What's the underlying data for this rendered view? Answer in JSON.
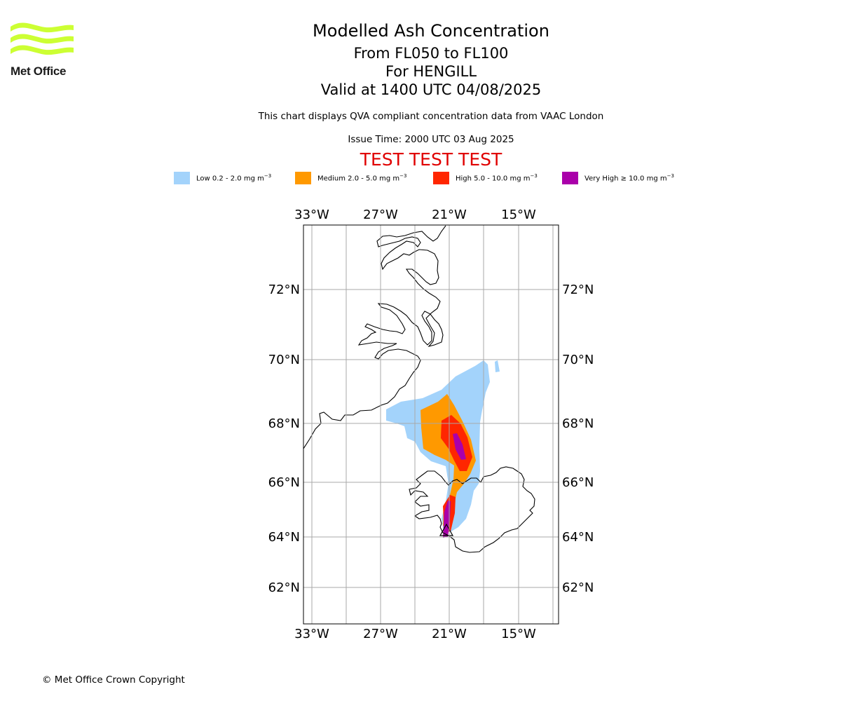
{
  "logo": {
    "text": "Met Office",
    "wave_color": "#ccff33"
  },
  "header": {
    "title": "Modelled Ash Concentration",
    "levels": "From FL050 to FL100",
    "location": "For HENGILL",
    "valid": "Valid at 1400 UTC 04/08/2025",
    "compliance_note": "This chart displays QVA compliant concentration data from VAAC London",
    "issue_time": "Issue Time: 2000 UTC 03 Aug 2025",
    "test_banner": "TEST TEST TEST"
  },
  "legend": [
    {
      "label": "Low 0.2 - 2.0 mg m",
      "unit_power": "−3",
      "color": "#a3d3fb"
    },
    {
      "label": "Medium 2.0 - 5.0 mg m",
      "unit_power": "−3",
      "color": "#ff9900"
    },
    {
      "label": "High 5.0 - 10.0 mg m",
      "unit_power": "−3",
      "color": "#ff2600"
    },
    {
      "label": "Very High  ≥  10.0 mg m",
      "unit_power": "−3",
      "color": "#aa00aa"
    }
  ],
  "map": {
    "lon_ticks": [
      "33°W",
      "27°W",
      "21°W",
      "15°W"
    ],
    "lat_ticks": [
      "72°N",
      "70°N",
      "68°N",
      "66°N",
      "64°N",
      "62°N"
    ],
    "gridline_color": "#a8a8a8",
    "coast_color": "#000000",
    "volcano_symbol": "triangle-icon"
  },
  "footer": {
    "copyright": "© Met Office Crown Copyright"
  }
}
